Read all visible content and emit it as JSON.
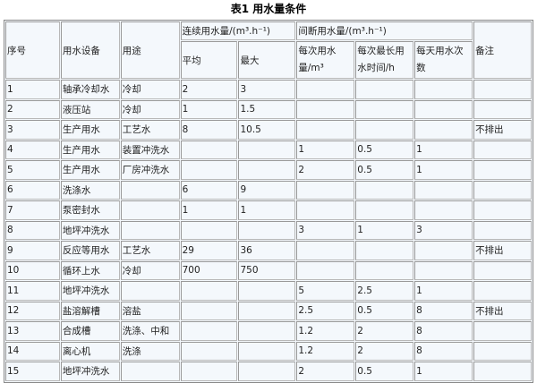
{
  "title": "表1 用水量条件",
  "headers": {
    "seq": "序号",
    "equipment": "用水设备",
    "purpose": "用途",
    "continuous": "连续用水量/(m³.h⁻¹)",
    "intermittent": "间断用水量/(m³.h⁻¹)",
    "remark": "备注",
    "avg": "平均",
    "max": "最大",
    "per_use": "每次用水量/m³",
    "max_duration": "每次最长用水时间/h",
    "times_per_day": "每天用水次数"
  },
  "rows": [
    [
      "1",
      "轴承冷却水",
      "冷却",
      "2",
      "3",
      "",
      "",
      "",
      ""
    ],
    [
      "2",
      "液压站",
      "冷却",
      "1",
      "1.5",
      "",
      "",
      "",
      ""
    ],
    [
      "3",
      "生产用水",
      "工艺水",
      "8",
      "10.5",
      "",
      "",
      "",
      "不排出"
    ],
    [
      "4",
      "生产用水",
      "装置冲洗水",
      "",
      "",
      "1",
      "0.5",
      "1",
      ""
    ],
    [
      "5",
      "生产用水",
      "厂房冲洗水",
      "",
      "",
      "2",
      "0.5",
      "1",
      ""
    ],
    [
      "6",
      "洗涤水",
      "",
      "6",
      "9",
      "",
      "",
      "",
      ""
    ],
    [
      "7",
      "泵密封水",
      "",
      "1",
      "1",
      "",
      "",
      "",
      ""
    ],
    [
      "8",
      "地坪冲洗水",
      "",
      "",
      "",
      "3",
      "1",
      "3",
      ""
    ],
    [
      "9",
      "反应等用水",
      "工艺水",
      "29",
      "36",
      "",
      "",
      "",
      "不排出"
    ],
    [
      "10",
      "循环上水",
      "冷却",
      "700",
      "750",
      "",
      "",
      "",
      ""
    ],
    [
      "11",
      "地坪冲洗水",
      "",
      "",
      "",
      "5",
      "2.5",
      "1",
      ""
    ],
    [
      "12",
      "盐溶解槽",
      "溶盐",
      "",
      "",
      "2.5",
      "0.5",
      "8",
      "不排出"
    ],
    [
      "13",
      "合成槽",
      "洗涤、中和",
      "",
      "",
      "1.2",
      "2",
      "8",
      ""
    ],
    [
      "14",
      "离心机",
      "洗涤",
      "",
      "",
      "1.2",
      "2",
      "8",
      ""
    ],
    [
      "15",
      "地坪冲洗水",
      "",
      "",
      "",
      "2",
      "0.5",
      "1",
      ""
    ]
  ]
}
